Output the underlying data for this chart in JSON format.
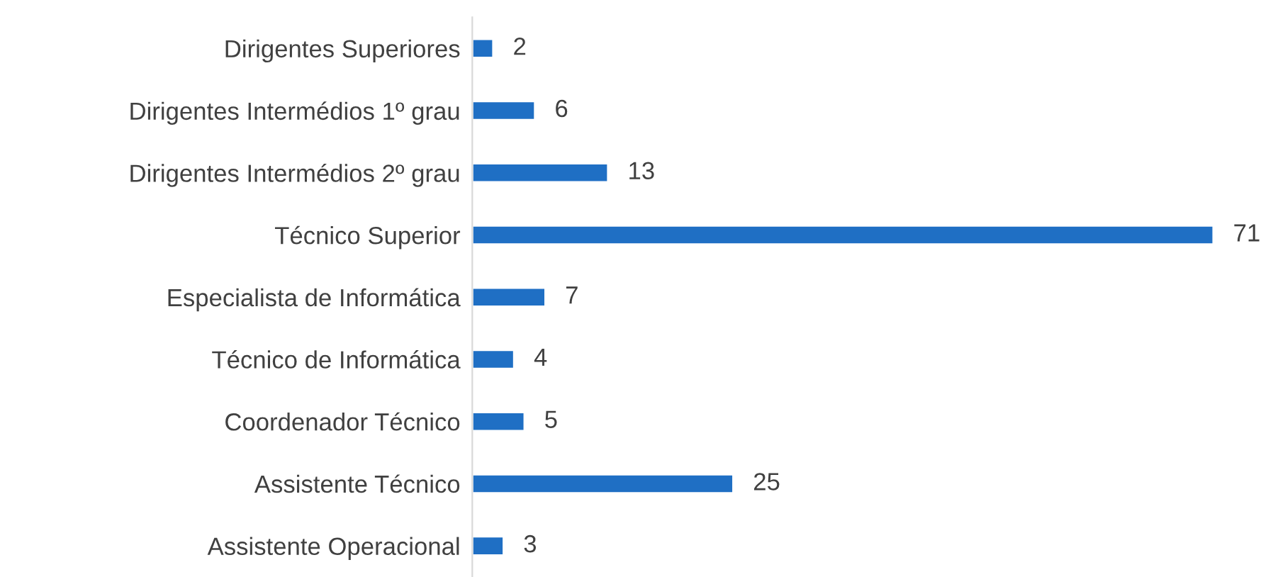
{
  "chart_data": {
    "type": "bar",
    "orientation": "horizontal",
    "categories": [
      "Dirigentes Superiores",
      "Dirigentes Intermédios 1º grau",
      "Dirigentes Intermédios 2º grau",
      "Técnico Superior",
      "Especialista de Informática",
      "Técnico de Informática",
      "Coordenador Técnico",
      "Assistente Técnico",
      "Assistente Operacional"
    ],
    "values": [
      2,
      6,
      13,
      71,
      7,
      4,
      5,
      25,
      3
    ],
    "color": "#1f6fc4",
    "data_labels": true,
    "grid": false,
    "legend": false
  }
}
